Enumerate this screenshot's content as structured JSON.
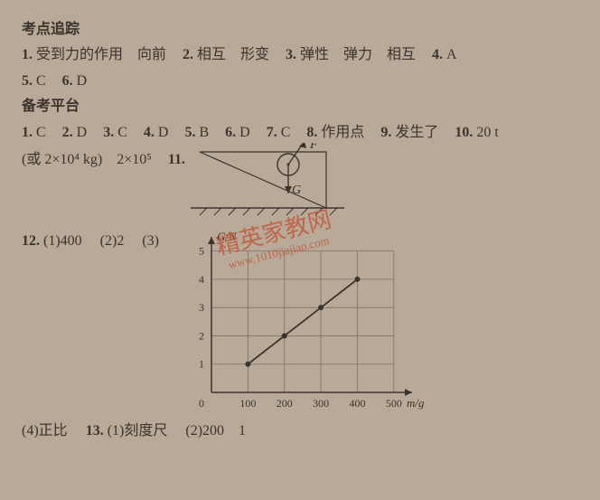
{
  "section1": {
    "title": "考点追踪",
    "items": [
      {
        "n": "1.",
        "t": "受到力的作用　向前"
      },
      {
        "n": "2.",
        "t": "相互　形变"
      },
      {
        "n": "3.",
        "t": "弹性　弹力　相互"
      },
      {
        "n": "4.",
        "t": "A"
      },
      {
        "n": "5.",
        "t": "C"
      },
      {
        "n": "6.",
        "t": "D"
      }
    ]
  },
  "section2": {
    "title": "备考平台",
    "items": [
      {
        "n": "1.",
        "t": "C"
      },
      {
        "n": "2.",
        "t": "D"
      },
      {
        "n": "3.",
        "t": "C"
      },
      {
        "n": "4.",
        "t": "D"
      },
      {
        "n": "5.",
        "t": "B"
      },
      {
        "n": "6.",
        "t": "D"
      },
      {
        "n": "7.",
        "t": "C"
      },
      {
        "n": "8.",
        "t": "作用点"
      },
      {
        "n": "9.",
        "t": "发生了"
      },
      {
        "n": "10.",
        "t": "20 t"
      }
    ],
    "line2": "(或 2×10⁴ kg)　2×10⁵",
    "q11": {
      "n": "11.",
      "F": "F",
      "G": "G"
    },
    "q12": {
      "n": "12.",
      "parts": [
        "(1)400",
        "(2)2",
        "(3)"
      ],
      "chart": {
        "type": "line",
        "xlabel": "m/g",
        "ylabel": "G/N",
        "xlim": [
          0,
          550
        ],
        "ylim": [
          0,
          5.5
        ],
        "xticks": [
          0,
          100,
          200,
          300,
          400,
          500
        ],
        "yticks": [
          0,
          1,
          2,
          3,
          4,
          5
        ],
        "grid_nx": 5,
        "grid_ny": 5,
        "points": [
          [
            100,
            1
          ],
          [
            200,
            2
          ],
          [
            300,
            3
          ],
          [
            400,
            4
          ]
        ],
        "line_color": "#3a342d",
        "grid_color": "#7d7265",
        "bg": "#b8a998",
        "tick_fontsize": 12
      }
    },
    "q12_part4": "(4)正比",
    "q13": {
      "n": "13.",
      "parts": [
        "(1)刻度尺",
        "(2)200　1"
      ]
    }
  },
  "watermark": {
    "text1": "精英家教网",
    "text2": "www.1010jiajiao.com"
  }
}
